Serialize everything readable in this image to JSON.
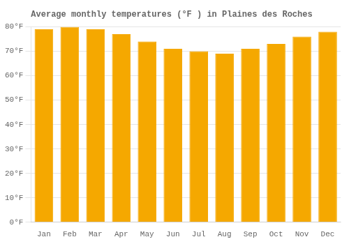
{
  "chart_data": {
    "type": "bar",
    "title": "Average monthly temperatures (°F ) in Plaines des Roches",
    "categories": [
      "Jan",
      "Feb",
      "Mar",
      "Apr",
      "May",
      "Jun",
      "Jul",
      "Aug",
      "Sep",
      "Oct",
      "Nov",
      "Dec"
    ],
    "values": [
      79,
      80,
      79,
      77,
      74,
      71,
      70,
      69,
      71,
      73,
      76,
      78
    ],
    "color": "#F5A800",
    "ylim": [
      0,
      80
    ],
    "yticks": [
      {
        "value": 0,
        "label": "0°F"
      },
      {
        "value": 10,
        "label": "10°F"
      },
      {
        "value": 20,
        "label": "20°F"
      },
      {
        "value": 30,
        "label": "30°F"
      },
      {
        "value": 40,
        "label": "40°F"
      },
      {
        "value": 50,
        "label": "50°F"
      },
      {
        "value": 60,
        "label": "60°F"
      },
      {
        "value": 70,
        "label": "70°F"
      },
      {
        "value": 80,
        "label": "80°F"
      }
    ],
    "grid": true
  }
}
